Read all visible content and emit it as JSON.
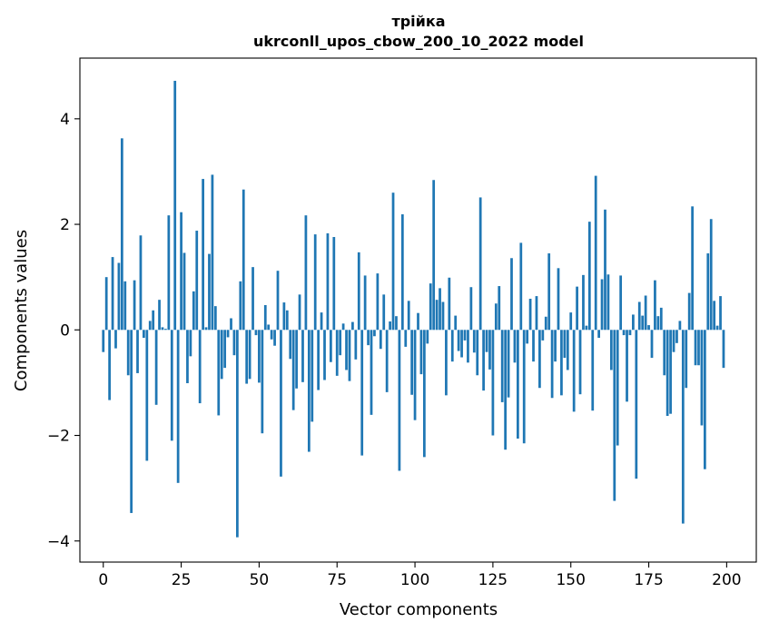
{
  "chart_data": {
    "type": "bar",
    "title": "трійка",
    "subtitle": "ukrconll_upos_cbow_200_10_2022 model",
    "xlabel": "Vector components",
    "ylabel": "Components values",
    "xlim": [
      -7.5,
      209.5
    ],
    "ylim": [
      -4.4,
      5.15
    ],
    "xticks": [
      0,
      25,
      50,
      75,
      100,
      125,
      150,
      175,
      200
    ],
    "xtick_labels": [
      "0",
      "25",
      "50",
      "75",
      "100",
      "125",
      "150",
      "175",
      "200"
    ],
    "yticks": [
      -4,
      -2,
      0,
      2,
      4
    ],
    "ytick_labels": [
      "−4",
      "−2",
      "0",
      "2",
      "4"
    ],
    "grid": false,
    "bar_color": "#1f77b4",
    "series": [
      {
        "x_start": 0,
        "values": [
          -0.42,
          1.0,
          -1.33,
          1.38,
          -0.35,
          1.27,
          3.63,
          0.92,
          -0.86,
          -3.47,
          0.94,
          -0.82,
          1.79,
          -0.15,
          -2.48,
          0.17,
          0.37,
          -1.42,
          0.57,
          0.05,
          0.02,
          2.17,
          -2.1,
          4.72,
          -2.9,
          2.23,
          1.46,
          -1.01,
          -0.5,
          0.73,
          1.88,
          -1.39,
          2.86,
          0.05,
          1.44,
          2.94,
          0.45,
          -1.62,
          -0.93,
          -0.72,
          -0.14,
          0.22,
          -0.48,
          -3.93,
          0.92,
          2.66,
          -1.02,
          -0.93,
          1.19,
          -0.1,
          -1.0,
          -1.96,
          0.47,
          0.1,
          -0.18,
          -0.3,
          1.12,
          -2.78,
          0.52,
          0.37,
          -0.55,
          -1.52,
          -1.11,
          0.67,
          -0.99,
          2.17,
          -2.31,
          -1.74,
          1.81,
          -1.14,
          0.33,
          -0.95,
          1.83,
          -0.61,
          1.76,
          -0.87,
          -0.48,
          0.12,
          -0.76,
          -0.97,
          0.15,
          -0.56,
          1.47,
          -2.38,
          1.03,
          -0.29,
          -1.61,
          -0.12,
          1.07,
          -0.36,
          0.67,
          -1.18,
          0.16,
          2.6,
          0.26,
          -2.67,
          2.19,
          -0.32,
          0.55,
          -1.23,
          -1.71,
          0.32,
          -0.84,
          -2.41,
          -0.26,
          0.88,
          2.84,
          0.57,
          0.79,
          0.53,
          -1.24,
          0.99,
          -0.6,
          0.27,
          -0.4,
          -0.52,
          -0.2,
          -0.62,
          0.81,
          -0.43,
          -0.86,
          2.51,
          -1.15,
          -0.42,
          -0.75,
          -2.0,
          0.5,
          0.83,
          -1.37,
          -2.27,
          -1.28,
          1.36,
          -0.62,
          -2.06,
          1.65,
          -2.15,
          -0.26,
          0.59,
          -0.6,
          0.64,
          -1.1,
          -0.2,
          0.25,
          1.45,
          -1.29,
          -0.6,
          1.17,
          -1.24,
          -0.53,
          -0.76,
          0.33,
          -1.55,
          0.82,
          -1.22,
          1.04,
          0.08,
          2.05,
          -1.53,
          2.92,
          -0.15,
          0.96,
          2.28,
          1.05,
          -0.76,
          -3.24,
          -2.19,
          1.03,
          -0.1,
          -1.36,
          -0.1,
          0.29,
          -2.82,
          0.53,
          0.27,
          0.65,
          0.09,
          -0.53,
          0.94,
          0.26,
          0.42,
          -0.86,
          -1.63,
          -1.59,
          -0.42,
          -0.25,
          0.17,
          -3.67,
          -1.1,
          0.7,
          2.34,
          -0.67,
          -0.67,
          -1.81,
          -2.64,
          1.45,
          2.1,
          0.55,
          0.08,
          0.64,
          -0.72
        ]
      }
    ]
  }
}
